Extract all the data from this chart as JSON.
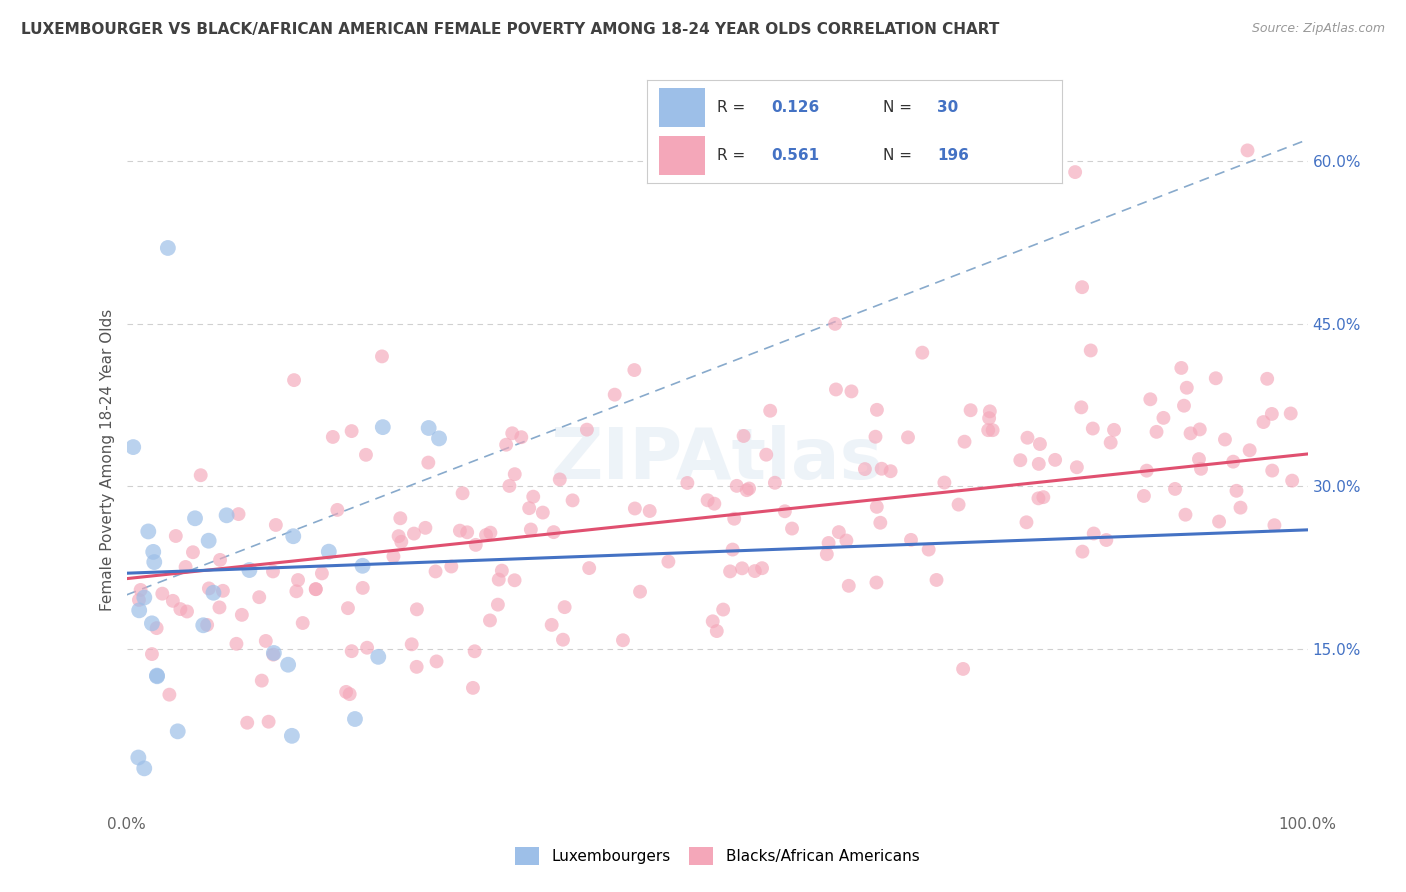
{
  "title": "LUXEMBOURGER VS BLACK/AFRICAN AMERICAN FEMALE POVERTY AMONG 18-24 YEAR OLDS CORRELATION CHART",
  "source_text": "Source: ZipAtlas.com",
  "ylabel": "Female Poverty Among 18-24 Year Olds",
  "xlim": [
    0,
    100
  ],
  "ylim": [
    0,
    65
  ],
  "ytick_positions": [
    15,
    30,
    45,
    60
  ],
  "ytick_labels": [
    "15.0%",
    "30.0%",
    "45.0%",
    "60.0%"
  ],
  "grid_color": "#d0d0d0",
  "background_color": "#ffffff",
  "lux_color": "#9dbfe8",
  "lux_line_color": "#4472c4",
  "lux_dash_color": "#8ab0d8",
  "black_color": "#f4a7b9",
  "black_line_color": "#e05070",
  "lux_R": 0.126,
  "lux_N": 30,
  "black_R": 0.561,
  "black_N": 196,
  "r_color": "#4472c4",
  "n_color": "#4472c4",
  "title_color": "#404040",
  "source_color": "#999999",
  "legend_label1": "Luxembourgers",
  "legend_label2": "Blacks/African Americans",
  "watermark_text": "ZIPAtlas",
  "watermark_color": "#e8eef5"
}
